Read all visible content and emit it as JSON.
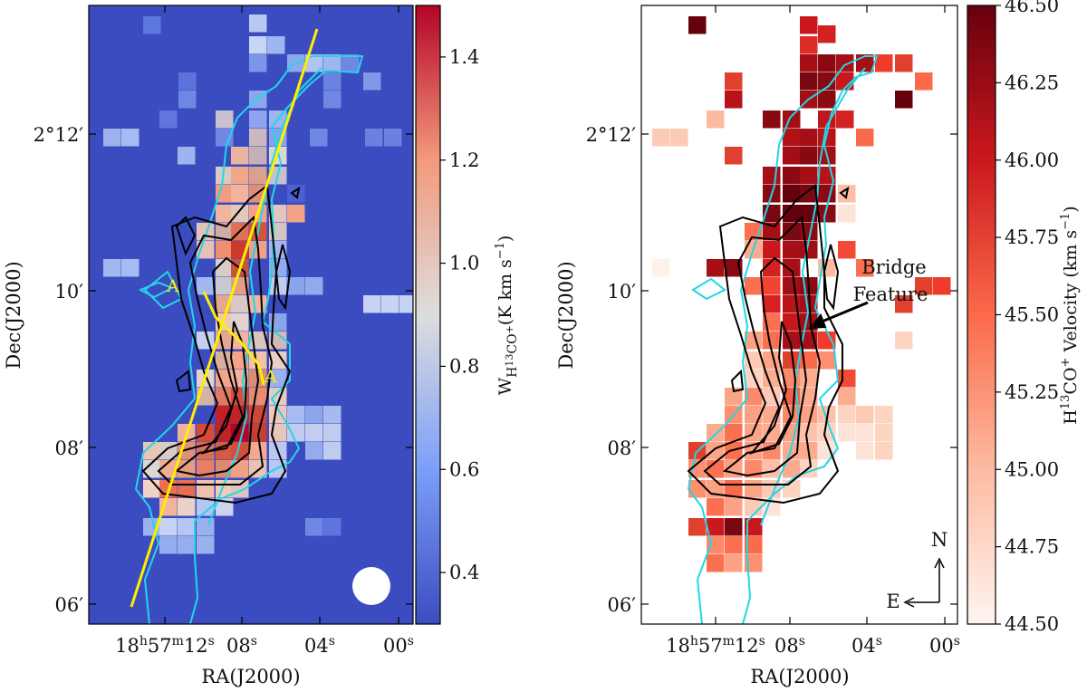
{
  "chart_data": [
    {
      "type": "heatmap",
      "panel": "left",
      "quantity": "integrated intensity",
      "colormap": "coolwarm",
      "xlabel": "RA(J2000)",
      "ylabel": "Dec(J2000)",
      "x_ticks": [
        {
          "h": "18",
          "hs": "h",
          "m": "57",
          "ms": "m",
          "s": "12",
          "ss": "s"
        },
        {
          "s": "08",
          "ss": "s"
        },
        {
          "s": "04",
          "ss": "s"
        },
        {
          "s": "00",
          "ss": "s"
        }
      ],
      "y_ticks": [
        "2°12′",
        "10′",
        "08′",
        "06′"
      ],
      "colorbar": {
        "label_main": "W",
        "label_sub": "H",
        "label_subsup": "13",
        "label_subtail": "CO",
        "label_subsup2": "+",
        "label_unit": "(K km s",
        "label_unit_sup": "−1",
        "label_close": ")",
        "range": [
          0.3,
          1.5
        ],
        "ticks": [
          "1.4",
          "1.2",
          "1.0",
          "0.8",
          "0.6",
          "0.4"
        ]
      },
      "annotations": [
        "A",
        "A"
      ],
      "cut_line_color": "#ffee00",
      "contour_colors": {
        "black": "#000000",
        "cyan": "#22d6e6"
      },
      "beam": "circle"
    },
    {
      "type": "heatmap",
      "panel": "right",
      "quantity": "velocity",
      "colormap": "Reds",
      "xlabel": "RA(J2000)",
      "ylabel": "Dec(J2000)",
      "x_ticks": [
        {
          "h": "18",
          "hs": "h",
          "m": "57",
          "ms": "m",
          "s": "12",
          "ss": "s"
        },
        {
          "s": "08",
          "ss": "s"
        },
        {
          "s": "04",
          "ss": "s"
        },
        {
          "s": "00",
          "ss": "s"
        }
      ],
      "y_ticks": [
        "2°12′",
        "10′",
        "08′",
        "06′"
      ],
      "colorbar": {
        "label_main": "H",
        "label_sup": "13",
        "label_tail": "CO",
        "label_sup2": "+",
        "label_unit": " Velocity (km s",
        "label_unit_sup": "−1",
        "label_close": ")",
        "range": [
          44.5,
          46.5
        ],
        "ticks": [
          "46.50",
          "46.25",
          "46.00",
          "45.75",
          "45.50",
          "45.25",
          "45.00",
          "44.75",
          "44.50"
        ]
      },
      "annotations": [
        "Bridge",
        "Feature"
      ],
      "compass": {
        "north": "N",
        "east": "E"
      }
    }
  ]
}
